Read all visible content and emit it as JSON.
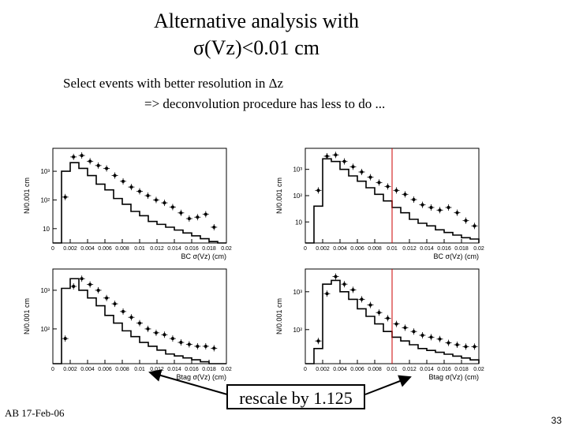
{
  "slide": {
    "title_line1": "Alternative analysis with",
    "title_line2": "σ(Vz)<0.01 cm",
    "subtitle_line1": "Select events with better resolution in Δz",
    "subtitle_line2": "=> deconvolution procedure has less to do ...",
    "callout": "rescale by 1.125",
    "footer": "AB 17-Feb-06",
    "page_number": "33"
  },
  "chart_data": [
    {
      "id": "p1",
      "type": "line",
      "title": "",
      "xlabel": "BC σ(Vz) (cm)",
      "ylabel": "N/0.001 cm",
      "xlim": [
        0,
        0.02
      ],
      "ylim_log10": [
        0.5,
        3.8
      ],
      "yticks": [
        {
          "v": 1,
          "label": "10"
        },
        {
          "v": 2,
          "label": "10²"
        },
        {
          "v": 3,
          "label": "10³"
        }
      ],
      "xticks": [
        "0",
        "0.002",
        "0.004",
        "0.006",
        "0.008",
        "0.01",
        "0.012",
        "0.014",
        "0.016",
        "0.018",
        "0.02"
      ],
      "cut": null,
      "series": [
        {
          "name": "histogram",
          "style": "step",
          "values": [
            0.5,
            3.0,
            3.3,
            3.1,
            2.85,
            2.55,
            2.35,
            2.05,
            1.85,
            1.6,
            1.45,
            1.25,
            1.15,
            1.05,
            0.95,
            0.85,
            0.75,
            0.65,
            0.55,
            0.5
          ]
        },
        {
          "name": "points",
          "style": "markers",
          "values": [
            null,
            2.1,
            3.5,
            3.55,
            3.35,
            3.2,
            3.1,
            2.85,
            2.65,
            2.45,
            2.3,
            2.15,
            2.0,
            1.9,
            1.75,
            1.55,
            1.35,
            1.4,
            1.5,
            1.05,
            null
          ]
        }
      ]
    },
    {
      "id": "p2",
      "type": "line",
      "title": "",
      "xlabel": "BC σ(Vz) (cm)",
      "ylabel": "N/0.001 cm",
      "xlim": [
        0,
        0.02
      ],
      "ylim_log10": [
        0.2,
        3.8
      ],
      "yticks": [
        {
          "v": 1,
          "label": "10"
        },
        {
          "v": 2,
          "label": "10²"
        },
        {
          "v": 3,
          "label": "10³"
        }
      ],
      "xticks": [
        "0",
        "0.002",
        "0.004",
        "0.006",
        "0.008",
        "0.01",
        "0.012",
        "0.014",
        "0.016",
        "0.018",
        "0.02"
      ],
      "cut": 0.01,
      "series": [
        {
          "name": "histogram",
          "style": "step",
          "values": [
            0.2,
            1.6,
            3.4,
            3.3,
            3.0,
            2.75,
            2.55,
            2.3,
            2.05,
            1.8,
            1.55,
            1.35,
            1.1,
            0.95,
            0.85,
            0.7,
            0.6,
            0.5,
            0.4,
            0.35
          ]
        },
        {
          "name": "points",
          "style": "markers",
          "values": [
            null,
            2.2,
            3.5,
            3.55,
            3.3,
            3.1,
            2.9,
            2.7,
            2.5,
            2.35,
            2.2,
            2.05,
            1.85,
            1.65,
            1.55,
            1.45,
            1.55,
            1.35,
            1.05,
            0.85
          ]
        }
      ]
    },
    {
      "id": "p3",
      "type": "line",
      "title": "",
      "xlabel": "Btag σ(Vz) (cm)",
      "ylabel": "N/0.001 cm",
      "xlim": [
        0,
        0.02
      ],
      "ylim_log10": [
        1.1,
        3.55
      ],
      "yticks": [
        {
          "v": 2,
          "label": "10²"
        },
        {
          "v": 3,
          "label": "10³"
        }
      ],
      "xticks": [
        "0",
        "0.002",
        "0.004",
        "0.006",
        "0.008",
        "0.01",
        "0.012",
        "0.014",
        "0.016",
        "0.018",
        "0.02"
      ],
      "cut": null,
      "series": [
        {
          "name": "histogram",
          "style": "step",
          "values": [
            1.1,
            3.05,
            3.3,
            3.0,
            2.8,
            2.6,
            2.35,
            2.15,
            1.95,
            1.8,
            1.65,
            1.55,
            1.45,
            1.35,
            1.3,
            1.25,
            1.2,
            1.15,
            1.1,
            1.1
          ]
        },
        {
          "name": "points",
          "style": "markers",
          "values": [
            null,
            1.75,
            3.1,
            3.3,
            3.15,
            3.0,
            2.8,
            2.65,
            2.45,
            2.3,
            2.15,
            2.0,
            1.9,
            1.85,
            1.75,
            1.65,
            1.6,
            1.55,
            1.55,
            1.5,
            null
          ]
        }
      ]
    },
    {
      "id": "p4",
      "type": "line",
      "title": "",
      "xlabel": "Btag σ(Vz) (cm)",
      "ylabel": "N/0.001 cm",
      "xlim": [
        0,
        0.02
      ],
      "ylim_log10": [
        1.1,
        3.6
      ],
      "yticks": [
        {
          "v": 2,
          "label": "10²"
        },
        {
          "v": 3,
          "label": "10³"
        }
      ],
      "xticks": [
        "0",
        "0.002",
        "0.004",
        "0.006",
        "0.008",
        "0.01",
        "0.012",
        "0.014",
        "0.016",
        "0.018",
        "0.02"
      ],
      "cut": 0.01,
      "series": [
        {
          "name": "histogram",
          "style": "step",
          "values": [
            1.1,
            1.5,
            3.2,
            3.3,
            3.0,
            2.8,
            2.55,
            2.35,
            2.15,
            1.95,
            1.8,
            1.7,
            1.6,
            1.5,
            1.45,
            1.4,
            1.35,
            1.3,
            1.25,
            1.2
          ]
        },
        {
          "name": "points",
          "style": "markers",
          "values": [
            null,
            1.7,
            2.95,
            3.4,
            3.2,
            3.05,
            2.8,
            2.65,
            2.45,
            2.3,
            2.15,
            2.05,
            1.95,
            1.85,
            1.8,
            1.75,
            1.65,
            1.6,
            1.55,
            1.55
          ]
        }
      ]
    }
  ]
}
